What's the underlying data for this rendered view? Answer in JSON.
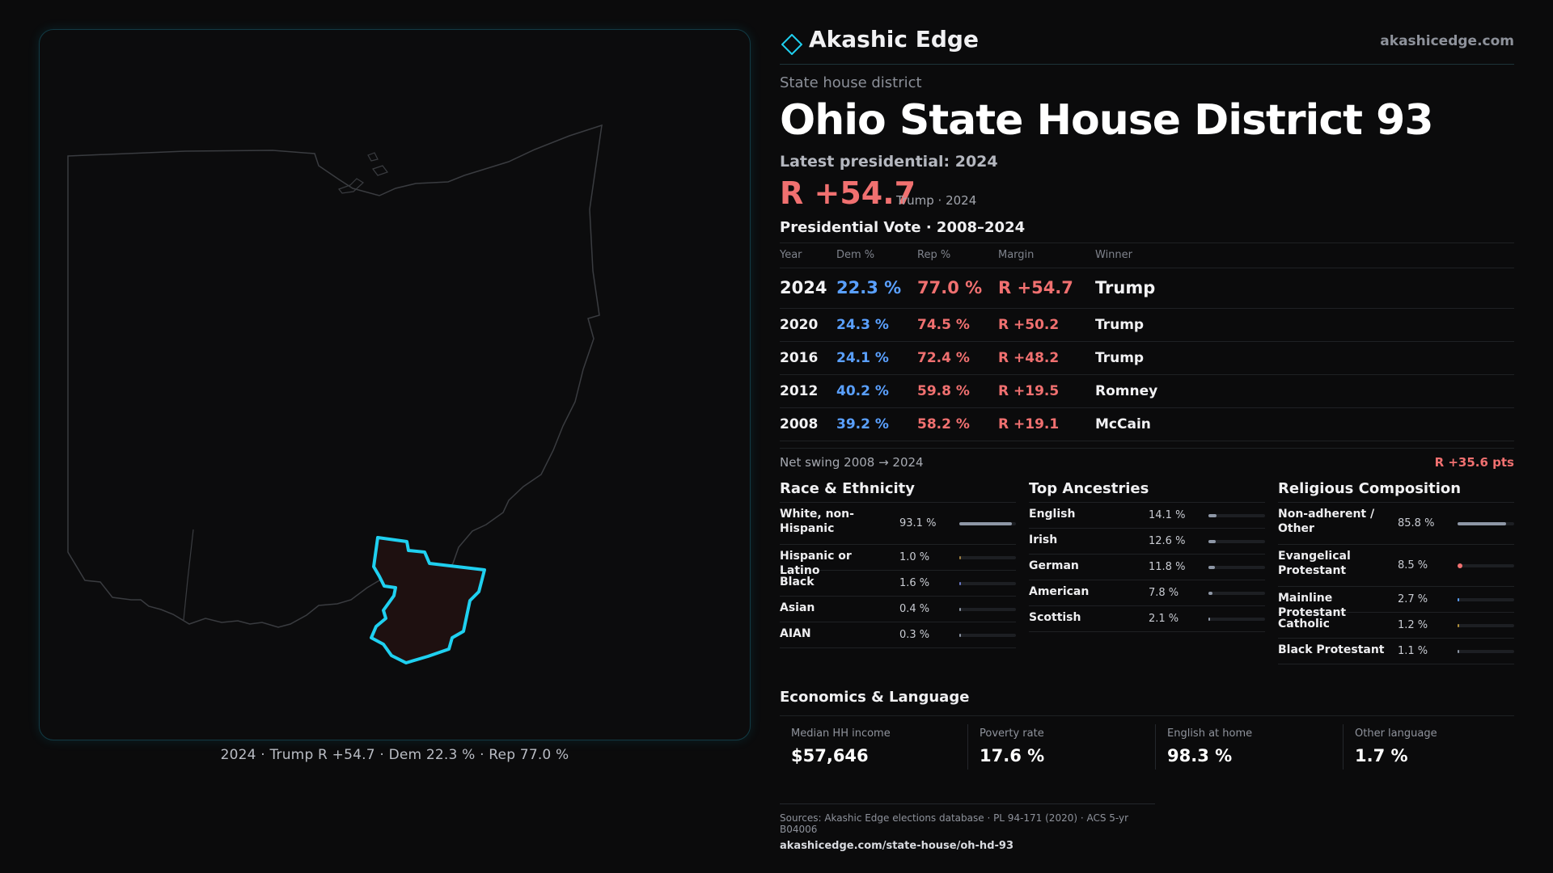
{
  "brand": {
    "name": "Akashic Edge",
    "url": "akashicedge.com",
    "accent": "#1fd0f0"
  },
  "district": {
    "kind": "State house district",
    "title": "Ohio State House District 93",
    "latest_label": "Latest presidential: 2024",
    "margin": "R +54.7",
    "margin_sub": "Trump · 2024"
  },
  "map": {
    "icons": [
      "ohio-outline-shape",
      "district-highlight-shape"
    ],
    "caption": "2024 · Trump R +54.7 · Dem 22.3 % · Rep 77.0 %",
    "highlight_color": "#1fd0f0"
  },
  "presidential": {
    "title": "Presidential Vote · 2008–2024",
    "headers": {
      "year": "Year",
      "dem": "Dem %",
      "rep": "Rep %",
      "margin": "Margin",
      "winner": "Winner"
    },
    "rows": [
      {
        "year": "2024",
        "dem": "22.3 %",
        "rep": "77.0 %",
        "margin": "R +54.7",
        "winner": "Trump"
      },
      {
        "year": "2020",
        "dem": "24.3 %",
        "rep": "74.5 %",
        "margin": "R +50.2",
        "winner": "Trump"
      },
      {
        "year": "2016",
        "dem": "24.1 %",
        "rep": "72.4 %",
        "margin": "R +48.2",
        "winner": "Trump"
      },
      {
        "year": "2012",
        "dem": "40.2 %",
        "rep": "59.8 %",
        "margin": "R +19.5",
        "winner": "Romney"
      },
      {
        "year": "2008",
        "dem": "39.2 %",
        "rep": "58.2 %",
        "margin": "R +19.1",
        "winner": "McCain"
      }
    ],
    "swing_label": "Net swing 2008 → 2024",
    "swing_value": "R +35.6 pts"
  },
  "race": {
    "title": "Race & Ethnicity",
    "rows": [
      {
        "label": "White, non-Hispanic",
        "value": "93.1 %",
        "share": 0.931
      },
      {
        "label": "Hispanic or Latino",
        "value": "1.0 %",
        "share": 0.01
      },
      {
        "label": "Black",
        "value": "1.6 %",
        "share": 0.016
      },
      {
        "label": "Asian",
        "value": "0.4 %",
        "share": 0.004
      },
      {
        "label": "AIAN",
        "value": "0.3 %",
        "share": 0.003
      }
    ]
  },
  "ancestry": {
    "title": "Top Ancestries",
    "rows": [
      {
        "label": "English",
        "value": "14.1 %",
        "share": 0.141
      },
      {
        "label": "Irish",
        "value": "12.6 %",
        "share": 0.126
      },
      {
        "label": "German",
        "value": "11.8 %",
        "share": 0.118
      },
      {
        "label": "American",
        "value": "7.8 %",
        "share": 0.078
      },
      {
        "label": "Scottish",
        "value": "2.1 %",
        "share": 0.021
      }
    ]
  },
  "religion": {
    "title": "Religious Composition",
    "rows": [
      {
        "label": "Non-adherent / Other",
        "value": "85.8 %",
        "share": 0.858
      },
      {
        "label": "Evangelical Protestant",
        "value": "8.5 %",
        "share": 0.085
      },
      {
        "label": "Mainline Protestant",
        "value": "2.7 %",
        "share": 0.027
      },
      {
        "label": "Catholic",
        "value": "1.2 %",
        "share": 0.012
      },
      {
        "label": "Black Protestant",
        "value": "1.1 %",
        "share": 0.011
      }
    ]
  },
  "economics": {
    "title": "Economics & Language",
    "cards": [
      {
        "label": "Median HH income",
        "value": "$57,646"
      },
      {
        "label": "Poverty rate",
        "value": "17.6 %"
      },
      {
        "label": "English at home",
        "value": "98.3 %"
      },
      {
        "label": "Other language",
        "value": "1.7 %"
      }
    ]
  },
  "sources": {
    "line": "Sources: Akashic Edge elections database · PL 94-171 (2020) · ACS 5-yr B04006",
    "url": "akashicedge.com/state-house/oh-hd-93"
  }
}
